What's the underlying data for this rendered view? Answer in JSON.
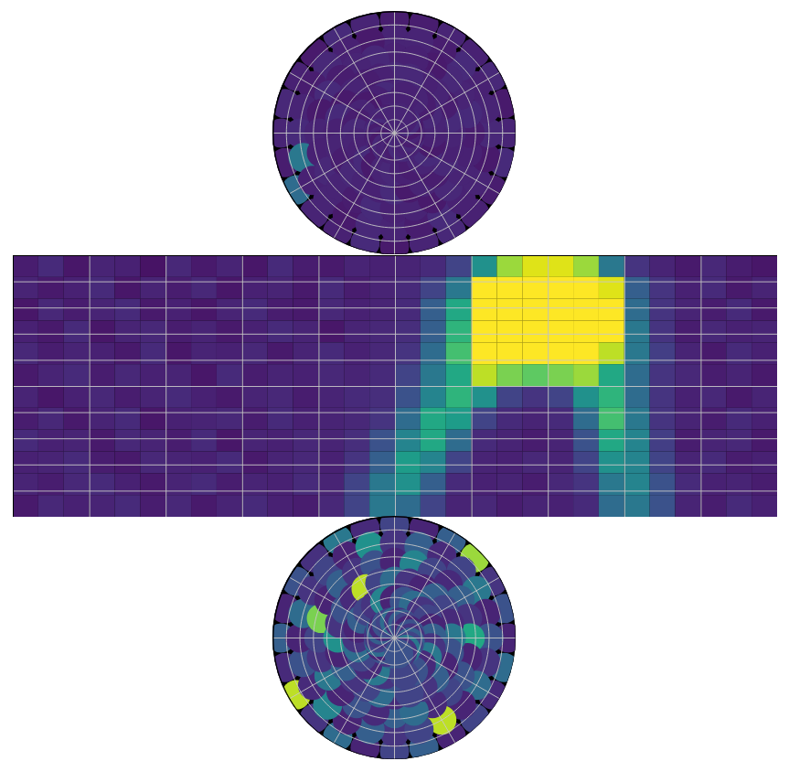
{
  "chart_data": [
    {
      "type": "polar_cap",
      "color": "viridis",
      "value_range": [
        0,
        1
      ],
      "grid": true,
      "tick_labels": false,
      "xlim": [
        -180,
        180
      ],
      "ylim": [
        45,
        90
      ],
      "xticks": [
        -180,
        -150,
        -120,
        -90,
        -60,
        -30,
        0,
        30,
        60,
        90,
        120,
        150
      ],
      "yticks": [
        50,
        55,
        60,
        65,
        70,
        75,
        80,
        85
      ],
      "x": [
        -180,
        -165,
        -150,
        -135,
        -120,
        -105,
        -90,
        -75,
        -60,
        -45,
        -30,
        -15,
        0,
        15,
        30,
        45,
        60,
        75,
        90,
        105,
        120,
        135,
        150,
        165
      ],
      "y": [
        48,
        55,
        62,
        69,
        76,
        84
      ],
      "values": [
        [
          0.08,
          0.1,
          0.12,
          0.07,
          0.09,
          0.11,
          0.1,
          0.08,
          0.35,
          0.1,
          0.09,
          0.12,
          0.07,
          0.1,
          0.11,
          0.09,
          0.08,
          0.12,
          0.1,
          0.07,
          0.11,
          0.09,
          0.1,
          0.08
        ],
        [
          0.1,
          0.07,
          0.09,
          0.11,
          0.08,
          0.1,
          0.12,
          0.4,
          0.09,
          0.1,
          0.07,
          0.11,
          0.1,
          0.08,
          0.12,
          0.09,
          0.1,
          0.07,
          0.11,
          0.1,
          0.09,
          0.12,
          0.08,
          0.1
        ],
        [
          0.09,
          0.11,
          0.1,
          0.08,
          0.12,
          0.07,
          0.1,
          0.09,
          0.11,
          0.1,
          0.08,
          0.12,
          0.09,
          0.1,
          0.07,
          0.11,
          0.1,
          0.09,
          0.08,
          0.12,
          0.1,
          0.11,
          0.07,
          0.09
        ],
        [
          0.11,
          0.09,
          0.08,
          0.1,
          0.07,
          0.12,
          0.09,
          0.1,
          0.08,
          0.11,
          0.1,
          0.09,
          0.12,
          0.07,
          0.1,
          0.08,
          0.11,
          0.09,
          0.1,
          0.12,
          0.08,
          0.1,
          0.09,
          0.11
        ],
        [
          0.1,
          0.12,
          0.09,
          0.07,
          0.1,
          0.08,
          0.11,
          0.1,
          0.09,
          0.12,
          0.07,
          0.1,
          0.11,
          0.09,
          0.08,
          0.1,
          0.12,
          0.07,
          0.09,
          0.1,
          0.11,
          0.08,
          0.1,
          0.09
        ],
        [
          0.09,
          0.1,
          0.08,
          0.11,
          0.1,
          0.09,
          0.12,
          0.08,
          0.1,
          0.07,
          0.11,
          0.09,
          0.1,
          0.08,
          0.12,
          0.1,
          0.09,
          0.11,
          0.08,
          0.1,
          0.07,
          0.12,
          0.09,
          0.1
        ]
      ]
    },
    {
      "type": "heatmap",
      "color": "viridis",
      "value_range": [
        0,
        1
      ],
      "grid": true,
      "tick_labels": false,
      "xlim": [
        -180,
        180
      ],
      "ylim": [
        -45,
        45
      ],
      "xticks": [
        -144,
        -108,
        -72,
        -36,
        0,
        36,
        72,
        108,
        144
      ],
      "yticks": [
        -36,
        -27,
        -18,
        -9,
        0,
        9,
        18,
        27,
        36
      ],
      "x_bins": [
        -180,
        -168,
        -156,
        -144,
        -132,
        -120,
        -108,
        -96,
        -84,
        -72,
        -60,
        -48,
        -36,
        -24,
        -12,
        0,
        12,
        24,
        36,
        48,
        60,
        72,
        84,
        96,
        108,
        120,
        132,
        144,
        156,
        168,
        180
      ],
      "y_bins": [
        45,
        37.5,
        30,
        22.5,
        15,
        7.5,
        0,
        -7.5,
        -15,
        -22.5,
        -30,
        -37.5,
        -45
      ],
      "values": [
        [
          0.08,
          0.12,
          0.06,
          0.1,
          0.09,
          0.05,
          0.11,
          0.07,
          0.1,
          0.06,
          0.12,
          0.08,
          0.07,
          0.1,
          0.09,
          0.1,
          0.12,
          0.2,
          0.5,
          0.85,
          0.95,
          0.95,
          0.85,
          0.4,
          0.15,
          0.1,
          0.07,
          0.11,
          0.08,
          0.06
        ],
        [
          0.1,
          0.07,
          0.09,
          0.12,
          0.06,
          0.1,
          0.08,
          0.11,
          0.06,
          0.09,
          0.1,
          0.07,
          0.12,
          0.08,
          0.1,
          0.12,
          0.2,
          0.4,
          1,
          1,
          1,
          1,
          1,
          0.95,
          0.3,
          0.15,
          0.09,
          0.12,
          0.07,
          0.1
        ],
        [
          0.06,
          0.11,
          0.08,
          0.1,
          0.12,
          0.07,
          0.09,
          0.06,
          0.1,
          0.12,
          0.08,
          0.07,
          0.11,
          0.09,
          0.1,
          0.12,
          0.3,
          0.6,
          1,
          1,
          1,
          1,
          1,
          1,
          0.35,
          0.15,
          0.1,
          0.08,
          0.12,
          0.07
        ],
        [
          0.09,
          0.07,
          0.12,
          0.06,
          0.1,
          0.11,
          0.08,
          0.1,
          0.07,
          0.09,
          0.12,
          0.1,
          0.06,
          0.1,
          0.11,
          0.13,
          0.3,
          0.65,
          1,
          1,
          1,
          1,
          1,
          1,
          0.4,
          0.15,
          0.08,
          0.11,
          0.09,
          0.1
        ],
        [
          0.11,
          0.08,
          0.1,
          0.09,
          0.07,
          0.12,
          0.06,
          0.1,
          0.09,
          0.11,
          0.07,
          0.1,
          0.12,
          0.09,
          0.11,
          0.15,
          0.35,
          0.7,
          1,
          1,
          1,
          1,
          1,
          0.9,
          0.4,
          0.18,
          0.1,
          0.07,
          0.12,
          0.09
        ],
        [
          0.07,
          0.1,
          0.12,
          0.08,
          0.11,
          0.09,
          0.1,
          0.06,
          0.12,
          0.08,
          0.1,
          0.09,
          0.11,
          0.1,
          0.12,
          0.2,
          0.4,
          0.6,
          0.9,
          0.8,
          0.75,
          0.8,
          0.85,
          0.6,
          0.35,
          0.15,
          0.11,
          0.08,
          0.1,
          0.07
        ],
        [
          0.1,
          0.06,
          0.09,
          0.11,
          0.08,
          0.1,
          0.12,
          0.09,
          0.07,
          0.1,
          0.11,
          0.08,
          0.1,
          0.12,
          0.13,
          0.25,
          0.45,
          0.65,
          0.5,
          0.2,
          0.15,
          0.2,
          0.5,
          0.65,
          0.35,
          0.15,
          0.09,
          0.11,
          0.07,
          0.1
        ],
        [
          0.08,
          0.11,
          0.07,
          0.1,
          0.12,
          0.06,
          0.09,
          0.1,
          0.11,
          0.08,
          0.12,
          0.09,
          0.1,
          0.11,
          0.15,
          0.35,
          0.6,
          0.55,
          0.2,
          0.12,
          0.1,
          0.12,
          0.35,
          0.7,
          0.4,
          0.15,
          0.1,
          0.08,
          0.12,
          0.09
        ],
        [
          0.12,
          0.09,
          0.1,
          0.07,
          0.11,
          0.1,
          0.08,
          0.12,
          0.06,
          0.1,
          0.09,
          0.11,
          0.1,
          0.13,
          0.25,
          0.45,
          0.6,
          0.35,
          0.12,
          0.1,
          0.08,
          0.1,
          0.25,
          0.6,
          0.45,
          0.18,
          0.08,
          0.1,
          0.11,
          0.07
        ],
        [
          0.09,
          0.1,
          0.12,
          0.08,
          0.07,
          0.11,
          0.1,
          0.09,
          0.12,
          0.07,
          0.1,
          0.11,
          0.09,
          0.15,
          0.3,
          0.55,
          0.45,
          0.2,
          0.1,
          0.09,
          0.11,
          0.1,
          0.2,
          0.5,
          0.45,
          0.2,
          0.1,
          0.12,
          0.08,
          0.09
        ],
        [
          0.1,
          0.08,
          0.11,
          0.12,
          0.09,
          0.07,
          0.1,
          0.12,
          0.08,
          0.1,
          0.09,
          0.12,
          0.1,
          0.2,
          0.4,
          0.5,
          0.3,
          0.12,
          0.09,
          0.1,
          0.08,
          0.11,
          0.15,
          0.4,
          0.45,
          0.25,
          0.12,
          0.09,
          0.1,
          0.08
        ],
        [
          0.07,
          0.11,
          0.09,
          0.1,
          0.12,
          0.08,
          0.11,
          0.07,
          0.1,
          0.12,
          0.09,
          0.08,
          0.11,
          0.2,
          0.4,
          0.35,
          0.2,
          0.1,
          0.11,
          0.08,
          0.1,
          0.09,
          0.12,
          0.35,
          0.4,
          0.25,
          0.1,
          0.08,
          0.12,
          0.09
        ]
      ]
    },
    {
      "type": "polar_cap",
      "color": "viridis",
      "value_range": [
        0,
        1
      ],
      "grid": true,
      "tick_labels": false,
      "xlim": [
        -180,
        180
      ],
      "ylim": [
        -90,
        -45
      ],
      "xticks": [
        -180,
        -150,
        -120,
        -90,
        -60,
        -30,
        0,
        30,
        60,
        90,
        120,
        150
      ],
      "yticks": [
        -85,
        -80,
        -75,
        -70,
        -65,
        -60,
        -55,
        -50
      ],
      "x": [
        -180,
        -165,
        -150,
        -135,
        -120,
        -105,
        -90,
        -75,
        -60,
        -45,
        -30,
        -15,
        0,
        15,
        30,
        45,
        60,
        75,
        90,
        105,
        120,
        135,
        150,
        165
      ],
      "y": [
        -48,
        -55,
        -62,
        -69,
        -76,
        -84
      ],
      "values": [
        [
          0.2,
          0.1,
          0.35,
          0.15,
          0.9,
          0.12,
          0.3,
          0.1,
          0.25,
          0.14,
          0.4,
          0.12,
          0.2,
          0.1,
          0.3,
          0.85,
          0.15,
          0.25,
          0.1,
          0.35,
          0.12,
          0.2,
          0.1,
          0.3
        ],
        [
          0.15,
          0.3,
          0.1,
          0.45,
          0.12,
          0.25,
          0.1,
          0.35,
          0.15,
          0.2,
          0.1,
          0.5,
          0.15,
          0.3,
          0.12,
          0.2,
          0.4,
          0.1,
          0.25,
          0.15,
          0.35,
          0.1,
          0.9,
          0.2
        ],
        [
          0.3,
          0.12,
          0.25,
          0.1,
          0.4,
          0.15,
          0.2,
          0.8,
          0.1,
          0.3,
          0.15,
          0.25,
          0.1,
          0.45,
          0.2,
          0.12,
          0.3,
          0.15,
          0.6,
          0.1,
          0.25,
          0.2,
          0.12,
          0.35
        ],
        [
          0.12,
          0.35,
          0.2,
          0.15,
          0.3,
          0.1,
          0.5,
          0.15,
          0.25,
          0.12,
          0.9,
          0.2,
          0.35,
          0.15,
          0.1,
          0.3,
          0.2,
          0.12,
          0.4,
          0.25,
          0.1,
          0.3,
          0.15,
          0.2
        ],
        [
          0.25,
          0.15,
          0.4,
          0.12,
          0.2,
          0.35,
          0.15,
          0.1,
          0.3,
          0.2,
          0.15,
          0.45,
          0.1,
          0.25,
          0.35,
          0.15,
          0.2,
          0.1,
          0.3,
          0.15,
          0.4,
          0.12,
          0.25,
          0.2
        ],
        [
          0.2,
          0.3,
          0.15,
          0.25,
          0.1,
          0.35,
          0.2,
          0.15,
          0.3,
          0.12,
          0.25,
          0.2,
          0.35,
          0.15,
          0.3,
          0.2,
          0.1,
          0.25,
          0.15,
          0.3,
          0.2,
          0.4,
          0.15,
          0.25
        ]
      ]
    }
  ]
}
